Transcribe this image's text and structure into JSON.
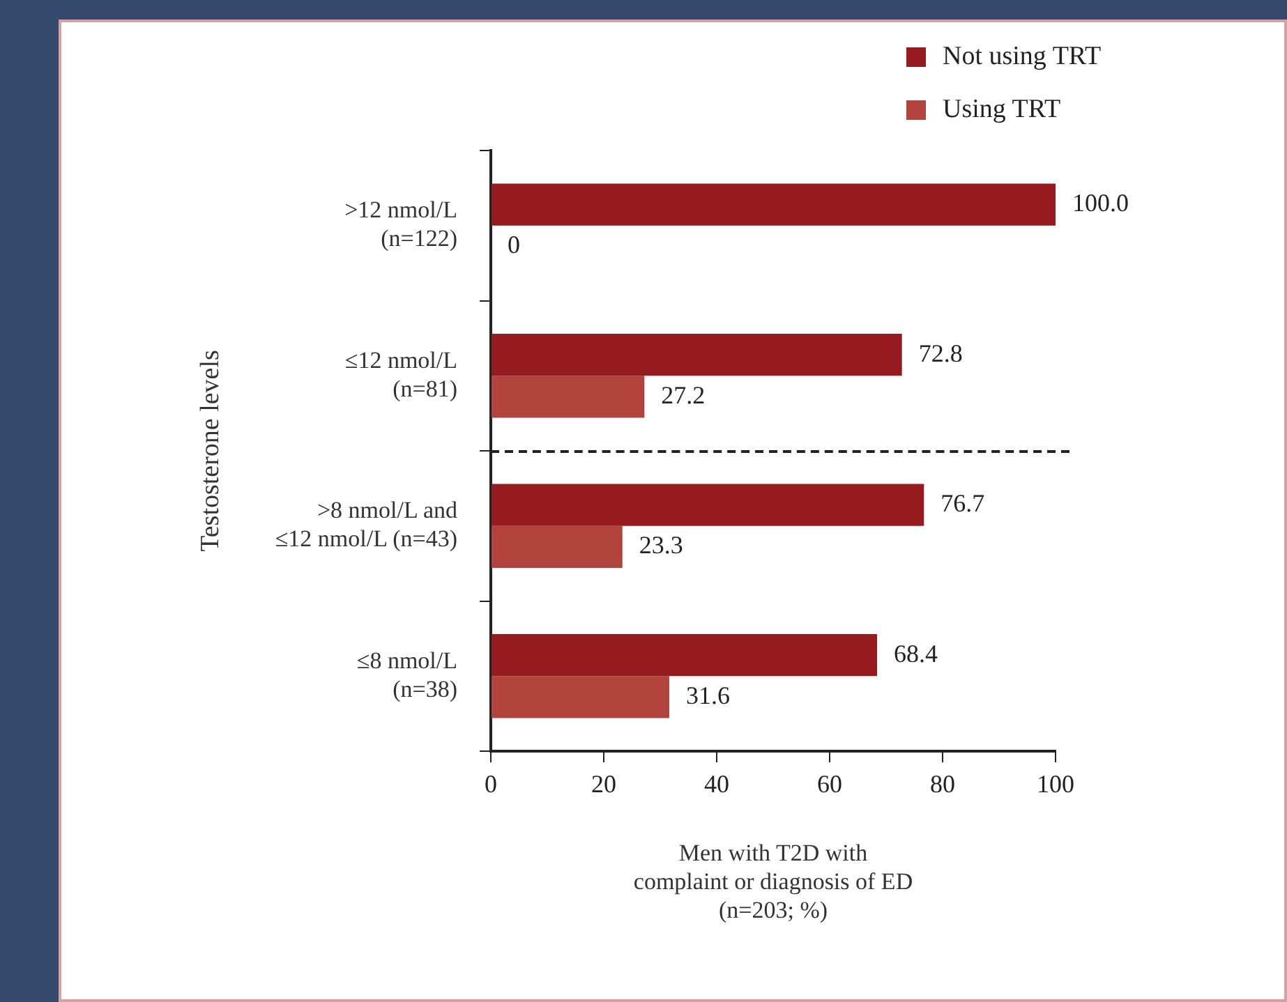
{
  "chart_data": {
    "type": "bar",
    "orientation": "horizontal",
    "xlabel": "Men with T2D with\ncomplaint or diagnosis of ED\n(n=203; %)",
    "ylabel": "Testosterone levels",
    "categories": [
      ">12 nmol/L\n(n=122)",
      "≤12 nmol/L\n(n=81)",
      ">8 nmol/L and\n≤12 nmol/L (n=43)",
      "≤8 nmol/L\n(n=38)"
    ],
    "series": [
      {
        "name": "Not using TRT",
        "color": "#951b1f",
        "values": [
          100.0,
          72.8,
          76.7,
          68.4
        ],
        "value_labels": [
          "100.0",
          "72.8",
          "76.7",
          "68.4"
        ]
      },
      {
        "name": "Using TRT",
        "color": "#b2423c",
        "values": [
          0,
          27.2,
          23.3,
          31.6
        ],
        "value_labels": [
          "0",
          "27.2",
          "23.3",
          "31.6"
        ]
      }
    ],
    "xlim": [
      0,
      100
    ],
    "xticks": [
      0,
      20,
      40,
      60,
      80,
      100
    ],
    "grid": false,
    "legend": "top right"
  }
}
